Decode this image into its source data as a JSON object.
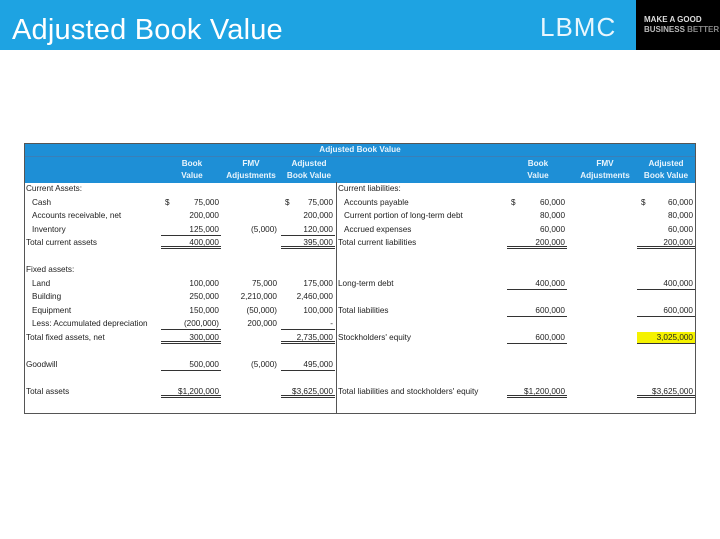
{
  "header": {
    "title": "Adjusted Book Value",
    "logo": "LBMC",
    "tagline_1": "MAKE A GOOD",
    "tagline_2a": "BUSINESS",
    "tagline_2b": "BETTER",
    "brand_color": "#1ea3e2"
  },
  "table": {
    "title": "Adjusted Book Value",
    "columns": {
      "book_1": "Book",
      "book_2": "Value",
      "fmv_1": "FMV",
      "fmv_2": "Adjustments",
      "adj_1": "Adjusted",
      "adj_2": "Book Value"
    },
    "highlight_color": "#f5f200",
    "rows": [
      {
        "left": {
          "label": "Current Assets:"
        },
        "right": {
          "label": "Current liabilities:"
        }
      },
      {
        "left": {
          "label": "Cash",
          "indent": true,
          "book": "75,000",
          "book_cur": "$",
          "adj": "75,000",
          "adj_cur": "$"
        },
        "right": {
          "label": "Accounts payable",
          "indent": true,
          "book": "60,000",
          "book_cur": "$",
          "adj": "60,000",
          "adj_cur": "$"
        }
      },
      {
        "left": {
          "label": "Accounts receivable, net",
          "indent": true,
          "book": "200,000",
          "adj": "200,000"
        },
        "right": {
          "label": "Current portion of long-term debt",
          "indent": true,
          "book": "80,000",
          "adj": "80,000"
        }
      },
      {
        "left": {
          "label": "Inventory",
          "indent": true,
          "book": "125,000",
          "fmv": "(5,000)",
          "adj": "120,000"
        },
        "right": {
          "label": "Accrued expenses",
          "indent": true,
          "book": "60,000",
          "adj": "60,000"
        }
      },
      {
        "left": {
          "label": "Total current assets",
          "book": "400,000",
          "adj": "395,000"
        },
        "right": {
          "label": "Total current liabilities",
          "book": "200,000",
          "adj": "200,000"
        }
      },
      {
        "left": {},
        "right": {}
      },
      {
        "left": {
          "label": "Fixed assets:"
        },
        "right": {}
      },
      {
        "left": {
          "label": "Land",
          "indent": true,
          "book": "100,000",
          "fmv": "75,000",
          "adj": "175,000"
        },
        "right": {
          "label": "Long-term debt",
          "book": "400,000",
          "adj": "400,000"
        }
      },
      {
        "left": {
          "label": "Building",
          "indent": true,
          "book": "250,000",
          "fmv": "2,210,000",
          "adj": "2,460,000"
        },
        "right": {}
      },
      {
        "left": {
          "label": "Equipment",
          "indent": true,
          "book": "150,000",
          "fmv": "(50,000)",
          "adj": "100,000"
        },
        "right": {
          "label": "Total liabilities",
          "book": "600,000",
          "adj": "600,000"
        }
      },
      {
        "left": {
          "label": "Less: Accumulated depreciation",
          "indent": true,
          "book": "(200,000)",
          "fmv": "200,000",
          "adj": "-"
        },
        "right": {}
      },
      {
        "left": {
          "label": "Total fixed assets, net",
          "book": "300,000",
          "adj": "2,735,000"
        },
        "right": {
          "label": "Stockholders' equity",
          "book": "600,000",
          "adj": "3,025,000",
          "highlight": true
        }
      },
      {
        "left": {},
        "right": {}
      },
      {
        "left": {
          "label": "Goodwill",
          "book": "500,000",
          "fmv": "(5,000)",
          "adj": "495,000"
        },
        "right": {}
      },
      {
        "left": {},
        "right": {}
      },
      {
        "left": {
          "label": "Total assets",
          "book": "$1,200,000",
          "adj": "$3,625,000"
        },
        "right": {
          "label": "Total liabilities and stockholders' equity",
          "book": "$1,200,000",
          "adj": "$3,625,000"
        }
      }
    ]
  }
}
